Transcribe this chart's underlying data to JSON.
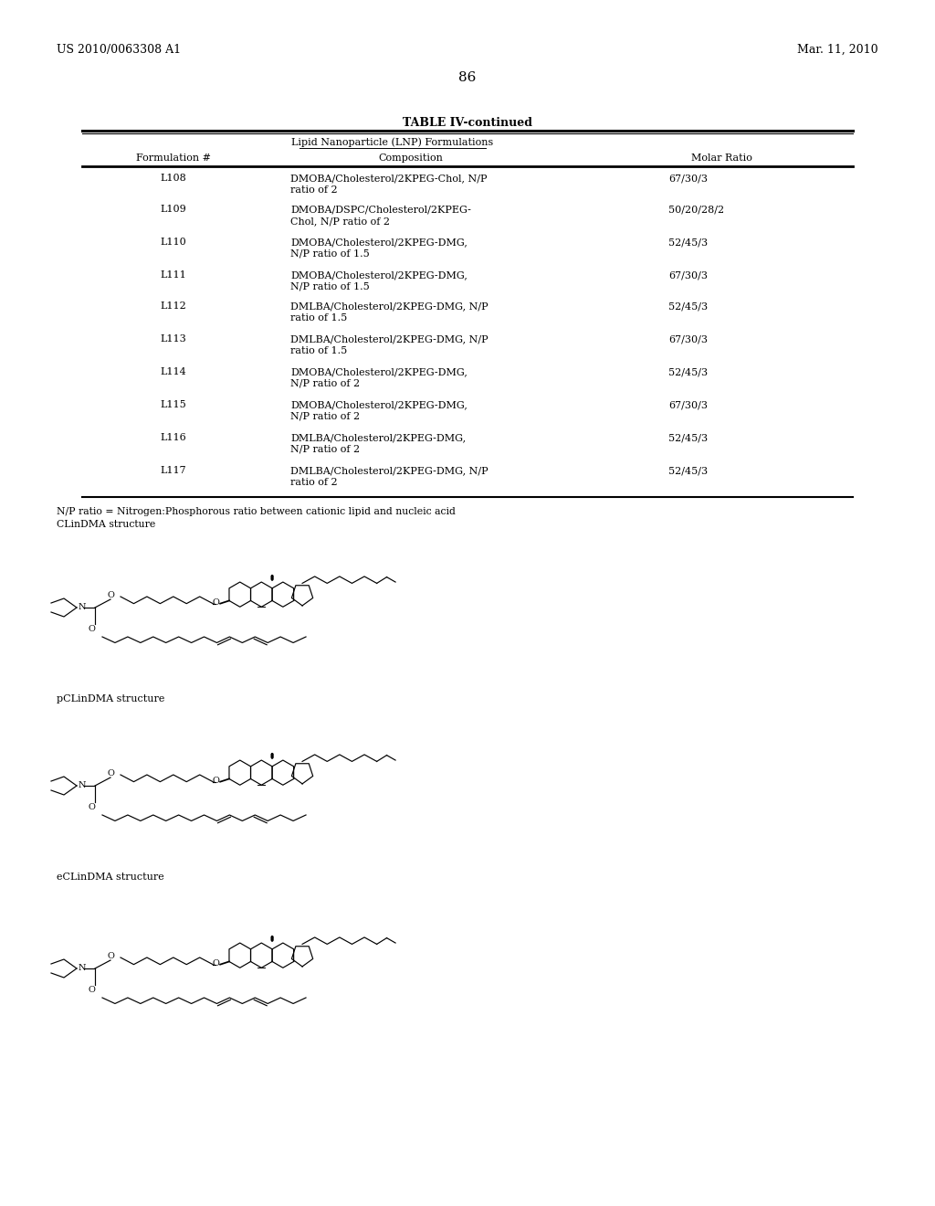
{
  "page_header_left": "US 2010/0063308 A1",
  "page_header_right": "Mar. 11, 2010",
  "page_number": "86",
  "table_title": "TABLE IV-continued",
  "table_subtitle": "Lipid Nanoparticle (LNP) Formulations",
  "col_headers": [
    "Formulation #",
    "Composition",
    "Molar Ratio"
  ],
  "rows": [
    [
      "L108",
      "DMOBA/Cholesterol/2KPEG-Chol, N/P\nratio of 2",
      "67/30/3"
    ],
    [
      "L109",
      "DMOBA/DSPC/Cholesterol/2KPEG-\nChol, N/P ratio of 2",
      "50/20/28/2"
    ],
    [
      "L110",
      "DMOBA/Cholesterol/2KPEG-DMG,\nN/P ratio of 1.5",
      "52/45/3"
    ],
    [
      "L111",
      "DMOBA/Cholesterol/2KPEG-DMG,\nN/P ratio of 1.5",
      "67/30/3"
    ],
    [
      "L112",
      "DMLBA/Cholesterol/2KPEG-DMG, N/P\nratio of 1.5",
      "52/45/3"
    ],
    [
      "L113",
      "DMLBA/Cholesterol/2KPEG-DMG, N/P\nratio of 1.5",
      "67/30/3"
    ],
    [
      "L114",
      "DMOBA/Cholesterol/2KPEG-DMG,\nN/P ratio of 2",
      "52/45/3"
    ],
    [
      "L115",
      "DMOBA/Cholesterol/2KPEG-DMG,\nN/P ratio of 2",
      "67/30/3"
    ],
    [
      "L116",
      "DMLBA/Cholesterol/2KPEG-DMG,\nN/P ratio of 2",
      "52/45/3"
    ],
    [
      "L117",
      "DMLBA/Cholesterol/2KPEG-DMG, N/P\nratio of 2",
      "52/45/3"
    ]
  ],
  "footnote1": "N/P ratio = Nitrogen:Phosphorous ratio between cationic lipid and nucleic acid",
  "footnote2": "CLinDMA structure",
  "label1": "pCLinDMA structure",
  "label2": "eCLinDMA structure",
  "bg_color": "#ffffff",
  "text_color": "#000000"
}
